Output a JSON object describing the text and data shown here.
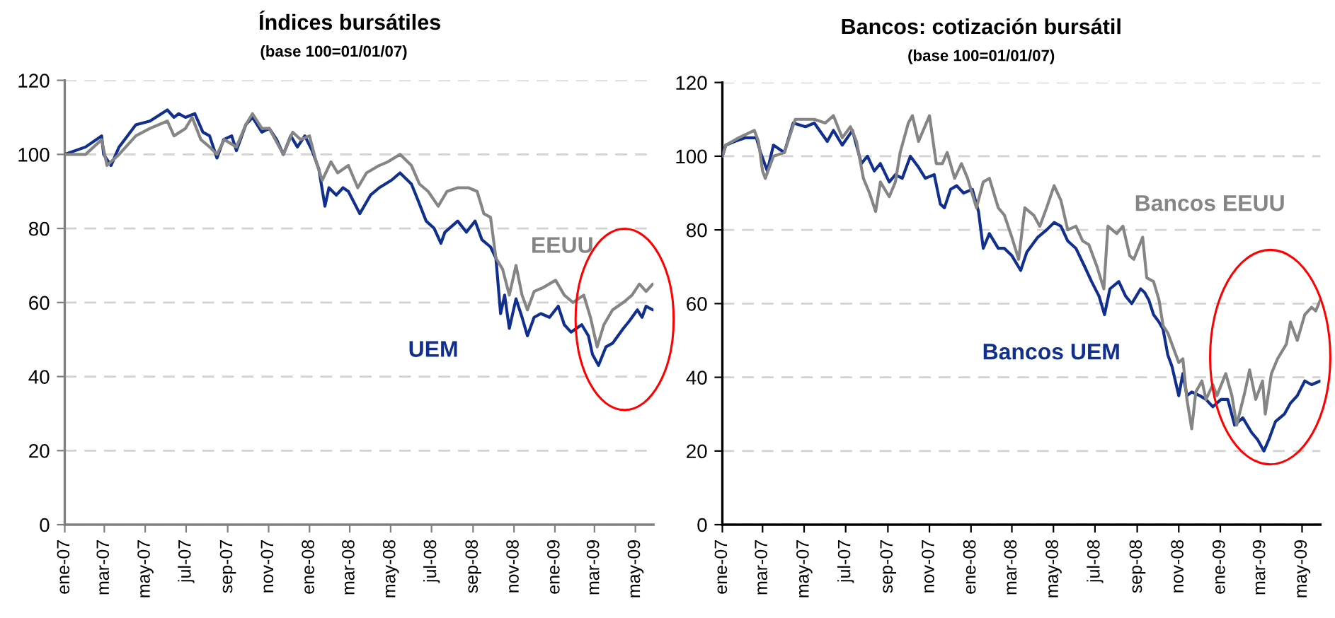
{
  "chart_data": [
    {
      "type": "line",
      "title": "Índices bursátiles",
      "subtitle": "(base 100=01/01/07)",
      "xlim": [
        "2007-01-01",
        "2009-05-28"
      ],
      "xticks": [
        {
          "value": "2007-01-01",
          "label": "ene-07"
        },
        {
          "value": "2007-03-01",
          "label": "mar-07"
        },
        {
          "value": "2007-05-01",
          "label": "may-07"
        },
        {
          "value": "2007-07-01",
          "label": "jul-07"
        },
        {
          "value": "2007-09-01",
          "label": "sep-07"
        },
        {
          "value": "2007-11-01",
          "label": "nov-07"
        },
        {
          "value": "2008-01-01",
          "label": "ene-08"
        },
        {
          "value": "2008-03-01",
          "label": "mar-08"
        },
        {
          "value": "2008-05-01",
          "label": "may-08"
        },
        {
          "value": "2008-07-01",
          "label": "jul-08"
        },
        {
          "value": "2008-09-01",
          "label": "sep-08"
        },
        {
          "value": "2008-11-01",
          "label": "nov-08"
        },
        {
          "value": "2009-01-01",
          "label": "ene-09"
        },
        {
          "value": "2009-03-01",
          "label": "mar-09"
        },
        {
          "value": "2009-05-01",
          "label": "may-09"
        }
      ],
      "ylim": [
        0,
        120
      ],
      "yticks": [
        0,
        20,
        40,
        60,
        80,
        100,
        120
      ],
      "grid": "y",
      "series": [
        {
          "name": "UEM",
          "color": "#102f8f",
          "x": [
            "2007-01-01",
            "2007-02-01",
            "2007-02-25",
            "2007-02-28",
            "2007-03-11",
            "2007-03-23",
            "2007-04-17",
            "2007-05-08",
            "2007-06-03",
            "2007-06-13",
            "2007-06-20",
            "2007-06-30",
            "2007-07-14",
            "2007-07-26",
            "2007-08-05",
            "2007-08-16",
            "2007-08-26",
            "2007-09-07",
            "2007-09-14",
            "2007-09-28",
            "2007-10-08",
            "2007-10-22",
            "2007-11-02",
            "2007-11-13",
            "2007-11-23",
            "2007-12-04",
            "2007-12-14",
            "2007-12-25",
            "2008-01-05",
            "2008-01-15",
            "2008-01-24",
            "2008-01-30",
            "2008-02-10",
            "2008-02-20",
            "2008-02-28",
            "2008-03-16",
            "2008-04-01",
            "2008-04-14",
            "2008-05-02",
            "2008-05-15",
            "2008-06-01",
            "2008-06-10",
            "2008-06-23",
            "2008-07-05",
            "2008-07-15",
            "2008-07-21",
            "2008-08-09",
            "2008-08-22",
            "2008-09-04",
            "2008-09-14",
            "2008-09-27",
            "2008-10-05",
            "2008-10-12",
            "2008-10-18",
            "2008-10-25",
            "2008-11-04",
            "2008-11-13",
            "2008-11-21",
            "2008-12-01",
            "2008-12-11",
            "2008-12-24",
            "2009-01-06",
            "2009-01-15",
            "2009-01-25",
            "2009-02-10",
            "2009-02-20",
            "2009-02-26",
            "2009-03-07",
            "2009-03-18",
            "2009-03-28",
            "2009-04-13",
            "2009-04-22",
            "2009-05-04",
            "2009-05-11",
            "2009-05-17",
            "2009-05-27"
          ],
          "values": [
            100,
            102,
            105,
            100,
            97,
            102,
            108,
            109,
            112,
            110,
            111,
            110,
            111,
            106,
            105,
            99,
            104,
            105,
            101,
            108,
            110,
            106,
            107,
            104,
            100,
            105,
            102,
            105,
            101,
            96,
            86,
            91,
            89,
            91,
            90,
            84,
            89,
            91,
            93,
            95,
            92,
            88,
            82,
            80,
            76,
            79,
            82,
            79,
            82,
            77,
            75,
            72,
            57,
            62,
            53,
            61,
            56,
            51,
            56,
            57,
            56,
            59,
            54,
            52,
            54,
            51,
            46,
            43,
            48,
            49,
            53,
            55,
            58,
            56,
            59,
            58
          ]
        },
        {
          "name": "EEUU",
          "color": "#858585",
          "x": [
            "2007-01-01",
            "2007-02-01",
            "2007-02-25",
            "2007-03-05",
            "2007-03-23",
            "2007-04-17",
            "2007-05-08",
            "2007-06-03",
            "2007-06-13",
            "2007-06-30",
            "2007-07-10",
            "2007-07-23",
            "2007-08-05",
            "2007-08-16",
            "2007-08-27",
            "2007-09-14",
            "2007-09-28",
            "2007-10-08",
            "2007-10-22",
            "2007-11-02",
            "2007-11-23",
            "2007-12-07",
            "2007-12-19",
            "2008-01-01",
            "2008-01-11",
            "2008-01-20",
            "2008-02-02",
            "2008-02-12",
            "2008-02-28",
            "2008-03-13",
            "2008-03-26",
            "2008-04-14",
            "2008-04-27",
            "2008-05-15",
            "2008-06-01",
            "2008-06-13",
            "2008-06-26",
            "2008-07-11",
            "2008-07-24",
            "2008-08-09",
            "2008-08-25",
            "2008-09-07",
            "2008-09-17",
            "2008-09-27",
            "2008-10-05",
            "2008-10-15",
            "2008-10-25",
            "2008-11-04",
            "2008-11-13",
            "2008-11-21",
            "2008-12-01",
            "2008-12-14",
            "2009-01-02",
            "2009-01-15",
            "2009-01-28",
            "2009-02-13",
            "2009-02-23",
            "2009-03-05",
            "2009-03-15",
            "2009-03-28",
            "2009-04-13",
            "2009-04-26",
            "2009-05-07",
            "2009-05-17",
            "2009-05-27"
          ],
          "values": [
            100,
            100,
            104,
            97,
            100,
            105,
            107,
            109,
            105,
            107,
            110,
            104,
            102,
            100,
            104,
            102,
            108,
            111,
            107,
            107,
            100,
            106,
            104,
            105,
            98,
            93,
            98,
            95,
            97,
            91,
            95,
            97,
            98,
            100,
            97,
            92,
            90,
            86,
            90,
            91,
            91,
            90,
            84,
            83,
            72,
            69,
            62,
            70,
            62,
            58,
            63,
            64,
            66,
            62,
            60,
            62,
            56,
            48,
            54,
            58,
            60,
            62,
            65,
            63,
            65
          ]
        }
      ]
    },
    {
      "type": "line",
      "title": "Bancos: cotización bursátil",
      "subtitle": "(base 100=01/01/07)",
      "xlim": [
        "2007-01-01",
        "2009-05-28"
      ],
      "xticks": [
        {
          "value": "2007-01-01",
          "label": "ene-07"
        },
        {
          "value": "2007-03-01",
          "label": "mar-07"
        },
        {
          "value": "2007-05-01",
          "label": "may-07"
        },
        {
          "value": "2007-07-01",
          "label": "jul-07"
        },
        {
          "value": "2007-09-01",
          "label": "sep-07"
        },
        {
          "value": "2007-11-01",
          "label": "nov-07"
        },
        {
          "value": "2008-01-01",
          "label": "ene-08"
        },
        {
          "value": "2008-03-01",
          "label": "mar-08"
        },
        {
          "value": "2008-05-01",
          "label": "may-08"
        },
        {
          "value": "2008-07-01",
          "label": "jul-08"
        },
        {
          "value": "2008-09-01",
          "label": "sep-08"
        },
        {
          "value": "2008-11-01",
          "label": "nov-08"
        },
        {
          "value": "2009-01-01",
          "label": "ene-09"
        },
        {
          "value": "2009-03-01",
          "label": "mar-09"
        },
        {
          "value": "2009-05-01",
          "label": "may-09"
        }
      ],
      "ylim": [
        0,
        120
      ],
      "yticks": [
        0,
        20,
        40,
        60,
        80,
        100,
        120
      ],
      "grid": "y",
      "series": [
        {
          "name": "Bancos UEM",
          "color": "#102f8f",
          "x": [
            "2007-01-01",
            "2007-01-06",
            "2007-01-19",
            "2007-02-04",
            "2007-02-20",
            "2007-02-26",
            "2007-03-08",
            "2007-03-17",
            "2007-04-02",
            "2007-04-15",
            "2007-05-03",
            "2007-05-16",
            "2007-06-04",
            "2007-06-13",
            "2007-06-26",
            "2007-07-11",
            "2007-07-24",
            "2007-08-02",
            "2007-08-12",
            "2007-08-21",
            "2007-09-03",
            "2007-09-12",
            "2007-09-22",
            "2007-10-04",
            "2007-10-16",
            "2007-10-26",
            "2007-11-08",
            "2007-11-17",
            "2007-11-23",
            "2007-12-02",
            "2007-12-11",
            "2007-12-21",
            "2008-01-03",
            "2008-01-12",
            "2008-01-19",
            "2008-01-28",
            "2008-02-10",
            "2008-02-19",
            "2008-03-01",
            "2008-03-14",
            "2008-03-23",
            "2008-04-08",
            "2008-04-21",
            "2008-05-02",
            "2008-05-12",
            "2008-05-22",
            "2008-06-03",
            "2008-06-16",
            "2008-06-26",
            "2008-07-07",
            "2008-07-15",
            "2008-07-23",
            "2008-08-05",
            "2008-08-15",
            "2008-08-24",
            "2008-09-06",
            "2008-09-12",
            "2008-09-18",
            "2008-09-25",
            "2008-10-03",
            "2008-10-09",
            "2008-10-16",
            "2008-10-22",
            "2008-11-01",
            "2008-11-07",
            "2008-11-13",
            "2008-11-20",
            "2008-12-02",
            "2008-12-11",
            "2008-12-21",
            "2009-01-02",
            "2009-01-12",
            "2009-01-22",
            "2009-02-03",
            "2009-02-16",
            "2009-02-25",
            "2009-03-06",
            "2009-03-13",
            "2009-03-23",
            "2009-04-05",
            "2009-04-14",
            "2009-04-24",
            "2009-05-05",
            "2009-05-15",
            "2009-05-28"
          ],
          "values": [
            100,
            103,
            104,
            105,
            105,
            101,
            96,
            103,
            101,
            109,
            108,
            109,
            104,
            107,
            103,
            107,
            98,
            100,
            96,
            98,
            93,
            95,
            94,
            100,
            97,
            94,
            95,
            87,
            86,
            91,
            92,
            90,
            91,
            85,
            75,
            79,
            75,
            75,
            73,
            69,
            74,
            78,
            80,
            82,
            81,
            77,
            75,
            70,
            66,
            62,
            57,
            64,
            66,
            62,
            60,
            64,
            63,
            61,
            57,
            55,
            53,
            46,
            43,
            35,
            41,
            35,
            36,
            35,
            34,
            32,
            34,
            34,
            27,
            29,
            25,
            23,
            20,
            23,
            28,
            30,
            33,
            35,
            39,
            38,
            39
          ]
        },
        {
          "name": "Bancos EEUU",
          "color": "#858585",
          "x": [
            "2007-01-01",
            "2007-01-06",
            "2007-01-25",
            "2007-02-17",
            "2007-02-23",
            "2007-03-01",
            "2007-03-05",
            "2007-03-17",
            "2007-04-02",
            "2007-04-18",
            "2007-05-16",
            "2007-06-01",
            "2007-06-13",
            "2007-06-26",
            "2007-07-08",
            "2007-07-17",
            "2007-07-27",
            "2007-08-05",
            "2007-08-14",
            "2007-08-21",
            "2007-09-03",
            "2007-09-12",
            "2007-09-19",
            "2007-10-01",
            "2007-10-07",
            "2007-10-16",
            "2007-11-01",
            "2007-11-11",
            "2007-11-20",
            "2007-11-27",
            "2007-12-08",
            "2007-12-18",
            "2007-12-27",
            "2008-01-09",
            "2008-01-19",
            "2008-01-28",
            "2008-02-10",
            "2008-02-19",
            "2008-03-01",
            "2008-03-11",
            "2008-03-20",
            "2008-04-02",
            "2008-04-11",
            "2008-04-21",
            "2008-05-02",
            "2008-05-12",
            "2008-05-22",
            "2008-06-03",
            "2008-06-13",
            "2008-06-22",
            "2008-07-04",
            "2008-07-14",
            "2008-07-20",
            "2008-08-02",
            "2008-08-11",
            "2008-08-21",
            "2008-08-27",
            "2008-09-09",
            "2008-09-15",
            "2008-09-25",
            "2008-10-03",
            "2008-10-09",
            "2008-10-16",
            "2008-10-22",
            "2008-11-01",
            "2008-11-07",
            "2008-11-13",
            "2008-11-20",
            "2008-11-26",
            "2008-12-05",
            "2008-12-11",
            "2008-12-21",
            "2008-12-27",
            "2009-01-09",
            "2009-01-18",
            "2009-01-25",
            "2009-02-06",
            "2009-02-13",
            "2009-02-22",
            "2009-03-04",
            "2009-03-08",
            "2009-03-17",
            "2009-03-26",
            "2009-04-08",
            "2009-04-14",
            "2009-04-24",
            "2009-05-05",
            "2009-05-15",
            "2009-05-21",
            "2009-05-28"
          ],
          "values": [
            100,
            103,
            105,
            107,
            104,
            96,
            94,
            100,
            101,
            110,
            110,
            109,
            111,
            105,
            108,
            104,
            94,
            90,
            85,
            93,
            89,
            93,
            101,
            109,
            111,
            104,
            111,
            98,
            98,
            101,
            94,
            98,
            94,
            86,
            93,
            94,
            86,
            84,
            78,
            72,
            86,
            84,
            81,
            86,
            92,
            88,
            80,
            81,
            77,
            76,
            70,
            64,
            81,
            79,
            81,
            73,
            72,
            78,
            67,
            66,
            61,
            54,
            52,
            49,
            44,
            45,
            34,
            26,
            36,
            39,
            34,
            38,
            35,
            41,
            35,
            27,
            36,
            42,
            34,
            39,
            30,
            41,
            45,
            49,
            55,
            50,
            57,
            59,
            58,
            61
          ]
        }
      ]
    }
  ]
}
